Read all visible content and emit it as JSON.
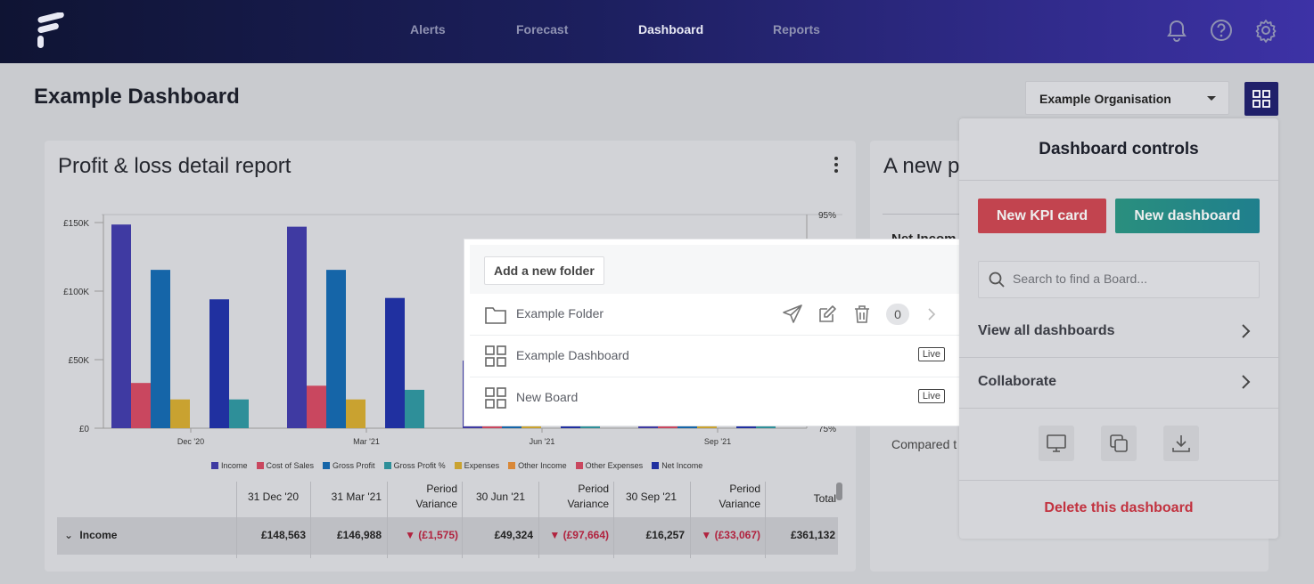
{
  "nav": {
    "links": [
      "Alerts",
      "Forecast",
      "Dashboard",
      "Reports"
    ],
    "active": "Dashboard",
    "icons": [
      "bell-icon",
      "help-icon",
      "gear-icon"
    ]
  },
  "page": {
    "title": "Example Dashboard",
    "organisation": "Example Organisation"
  },
  "card1": {
    "title": "Profit & loss detail report"
  },
  "card2": {
    "title": "A new p",
    "net_income_label": "Net Incom",
    "compared": "Compared t"
  },
  "chart_data": {
    "type": "bar",
    "categories": [
      "Dec '20",
      "Mar '21",
      "Jun '21",
      "Sep '21"
    ],
    "y_ticks": [
      "£150K",
      "£100K",
      "£50K",
      "£0"
    ],
    "y2_ticks": [
      "95%",
      "75%"
    ],
    "ylim": [
      0,
      150000
    ],
    "series": [
      {
        "name": "Income",
        "color": "#3f3aa2",
        "values": [
          148563,
          146988,
          49324,
          16257
        ]
      },
      {
        "name": "Cost of Sales",
        "color": "#c9475f",
        "values": [
          33000,
          31000,
          4000,
          1500
        ]
      },
      {
        "name": "Gross Profit",
        "color": "#1565a8",
        "values": [
          115500,
          115500,
          6000,
          6000
        ]
      },
      {
        "name": "Gross Profit %",
        "color": "#2e8f99",
        "values": [
          null,
          null,
          null,
          null
        ]
      },
      {
        "name": "Expenses",
        "color": "#c9a230",
        "values": [
          21000,
          21000,
          6000,
          6000
        ]
      },
      {
        "name": "Other Income",
        "color": "#d98838",
        "values": [
          0,
          0,
          0,
          0
        ]
      },
      {
        "name": "Other Expenses",
        "color": "#c9475f",
        "values": [
          0,
          0,
          0,
          0
        ]
      },
      {
        "name": "Net Income",
        "color": "#2030a0",
        "values": [
          94000,
          95000,
          6000,
          6000
        ]
      }
    ],
    "gross_profit_pct_bars": [
      21000,
      28000,
      6000,
      6000
    ]
  },
  "table": {
    "headers": [
      "31 Dec '20",
      "31 Mar '21",
      "Period Variance",
      "30 Jun '21",
      "Period Variance",
      "30 Sep '21",
      "Period Variance",
      "Total"
    ],
    "row": {
      "label": "Income",
      "values": [
        "£148,563",
        "£146,988",
        "▼ (£1,575)",
        "£49,324",
        "▼ (£97,664)",
        "£16,257",
        "▼ (£33,067)",
        "£361,132"
      ]
    }
  },
  "popup": {
    "add_folder": "Add a new folder",
    "rows": [
      {
        "name": "Example Folder",
        "type": "folder",
        "count": "0"
      },
      {
        "name": "Example Dashboard",
        "type": "dashboard",
        "badge": "Live"
      },
      {
        "name": "New Board",
        "type": "dashboard",
        "badge": "Live"
      }
    ]
  },
  "controls": {
    "title": "Dashboard controls",
    "new_kpi": "New KPI card",
    "new_dashboard": "New dashboard",
    "search_placeholder": "Search to find a Board...",
    "view_all": "View all dashboards",
    "collaborate": "Collaborate",
    "delete": "Delete this dashboard",
    "icon_buttons": [
      "monitor-icon",
      "copy-icon",
      "download-icon"
    ]
  }
}
